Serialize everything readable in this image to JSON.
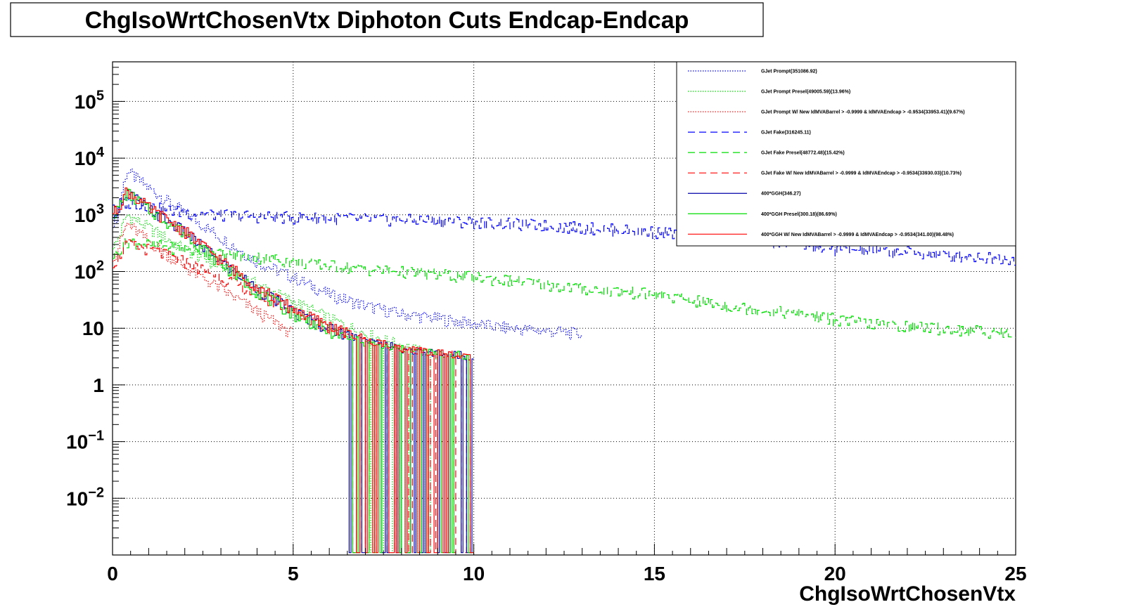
{
  "chart_data": {
    "type": "line",
    "title": "ChgIsoWrtChosenVtx Diphoton Cuts Endcap-Endcap",
    "xlabel": "ChgIsoWrtChosenVtx",
    "ylabel": "",
    "xlim": [
      0,
      25
    ],
    "ylim": [
      0.001,
      500000
    ],
    "yscale": "log",
    "grid": true,
    "legend_position": "top-right",
    "xticks": [
      {
        "value": 0,
        "label": "0"
      },
      {
        "value": 5,
        "label": "5"
      },
      {
        "value": 10,
        "label": "10"
      },
      {
        "value": 15,
        "label": "15"
      },
      {
        "value": 20,
        "label": "20"
      },
      {
        "value": 25,
        "label": "25"
      }
    ],
    "yticks": [
      {
        "value": 0.01,
        "base": "10",
        "exp": "−2"
      },
      {
        "value": 0.1,
        "base": "10",
        "exp": "−1"
      },
      {
        "value": 1,
        "base": "1",
        "exp": ""
      },
      {
        "value": 10,
        "base": "10",
        "exp": ""
      },
      {
        "value": 100,
        "base": "10",
        "exp": "2"
      },
      {
        "value": 1000,
        "base": "10",
        "exp": "3"
      },
      {
        "value": 10000,
        "base": "10",
        "exp": "4"
      },
      {
        "value": 100000,
        "base": "10",
        "exp": "5"
      }
    ],
    "series": [
      {
        "name": "GJet Prompt(351086.92)",
        "color": "#0000ff",
        "style": "dotted",
        "x": [
          0.1,
          0.4,
          1,
          2,
          3,
          4,
          5,
          6,
          7,
          8,
          9,
          10,
          11,
          12,
          13
        ],
        "values": [
          800,
          6000,
          3000,
          1100,
          400,
          150,
          80,
          40,
          25,
          18,
          15,
          12,
          10,
          9,
          8
        ]
      },
      {
        "name": "GJet Prompt Presel(49005.59)(13.96%)",
        "color": "#00dd00",
        "style": "dotted",
        "x": [
          0.1,
          0.4,
          1,
          2,
          3,
          4,
          5,
          6,
          7,
          8,
          9
        ],
        "values": [
          300,
          1000,
          600,
          250,
          120,
          60,
          30,
          15,
          8,
          5,
          3
        ]
      },
      {
        "name": "GJet Prompt W/ New IdMVABarrel > -0.9999 & IdMVAEndcap > -0.9534(33953.41)(9.67%)",
        "color": "#ff0000",
        "style": "dotted",
        "x": [
          0.1,
          0.4,
          1,
          2,
          3,
          4,
          5
        ],
        "values": [
          200,
          700,
          350,
          120,
          50,
          20,
          8
        ]
      },
      {
        "name": "GJet Fake(316245.11)",
        "color": "#0000ff",
        "style": "dashed",
        "x": [
          0.1,
          0.4,
          1,
          2,
          3,
          5,
          7,
          9,
          10,
          12,
          14,
          15,
          17,
          19,
          20,
          22,
          24,
          25
        ],
        "values": [
          1000,
          1700,
          1400,
          1100,
          1000,
          900,
          850,
          800,
          750,
          650,
          550,
          500,
          420,
          300,
          250,
          220,
          180,
          170
        ]
      },
      {
        "name": "GJet Fake Presel(48772.48)(15.42%)",
        "color": "#00dd00",
        "style": "dashed",
        "x": [
          0.1,
          0.4,
          1,
          2,
          3,
          4,
          5,
          7,
          9,
          11,
          13,
          15,
          17,
          19,
          21,
          23,
          25
        ],
        "values": [
          200,
          350,
          300,
          250,
          200,
          180,
          150,
          110,
          90,
          70,
          50,
          40,
          25,
          18,
          12,
          10,
          8
        ]
      },
      {
        "name": "GJet Fake W/ New IdMVABarrel > -0.9999 & IdMVAEndcap > -0.9534(33930.03)(10.73%)",
        "color": "#ff0000",
        "style": "dashed",
        "x": [
          0.1,
          0.4,
          1,
          2,
          3,
          4,
          5,
          6,
          7,
          8,
          10
        ],
        "values": [
          150,
          300,
          250,
          150,
          80,
          40,
          20,
          10,
          6,
          4,
          3
        ]
      },
      {
        "name": "400*GGH(346.27)",
        "color": "#0000aa",
        "style": "solid",
        "x": [
          0.1,
          0.4,
          1,
          2,
          3,
          4,
          5,
          6,
          7,
          8,
          10
        ],
        "values": [
          1200,
          2600,
          1300,
          500,
          150,
          50,
          20,
          10,
          6,
          4,
          3
        ]
      },
      {
        "name": "400*GGH Presel(300.18)(86.69%)",
        "color": "#00dd00",
        "style": "solid",
        "x": [
          0.1,
          0.4,
          1,
          2,
          3,
          4,
          5,
          6,
          7,
          8,
          10
        ],
        "values": [
          1100,
          2500,
          1250,
          480,
          140,
          45,
          18,
          9,
          5,
          4,
          3
        ]
      },
      {
        "name": "400*GGH W/ New IdMVABarrel > -0.9999 & IdMVAEndcap > -0.9534(341.00)(98.48%)",
        "color": "#ff0000",
        "style": "solid",
        "x": [
          0.1,
          0.4,
          1,
          2,
          3,
          4,
          5,
          6,
          7,
          8,
          10
        ],
        "values": [
          1150,
          2700,
          1350,
          520,
          160,
          55,
          22,
          11,
          6,
          4,
          3
        ]
      }
    ]
  }
}
